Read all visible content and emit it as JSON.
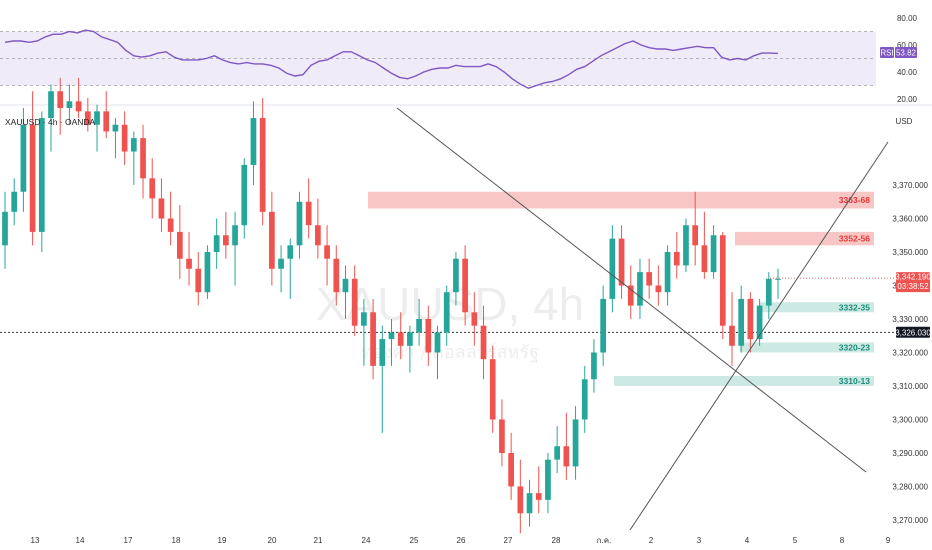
{
  "chart_data": [
    {
      "type": "line",
      "indicator": "RSI",
      "ylim": [
        20,
        80
      ],
      "y_ticks": [
        "80.00",
        "60.00",
        "40.00",
        "20.00"
      ],
      "band_upper": 70,
      "band_lower": 30,
      "midline": 50,
      "value_label": "53.82",
      "legend_label": "RSI",
      "values": [
        62,
        63,
        63,
        62,
        63,
        66,
        68,
        68,
        70,
        69,
        71,
        70,
        66,
        64,
        62,
        56,
        52,
        51,
        52,
        54,
        55,
        51,
        49,
        49,
        49,
        50,
        52,
        49,
        47,
        46,
        47,
        46,
        46,
        45,
        43,
        39,
        37,
        38,
        45,
        48,
        49,
        52,
        55,
        55,
        52,
        49,
        47,
        43,
        39,
        36,
        35,
        37,
        40,
        42,
        43,
        43,
        45,
        44,
        44,
        44,
        46,
        44,
        40,
        35,
        31,
        28,
        30,
        32,
        33,
        35,
        38,
        42,
        44,
        48,
        52,
        55,
        58,
        61,
        63,
        60,
        58,
        57,
        57,
        56,
        57,
        58,
        59,
        58,
        58,
        51,
        49,
        50,
        49,
        52,
        54,
        54,
        53.8
      ]
    },
    {
      "type": "candlestick",
      "symbol_label": "XAUUSD · 4h · OANDA",
      "currency_label": "USD",
      "watermark": "XAUUSD, 4h",
      "watermark_sub": "ทองคำ / ดอลลาร์สหรัฐ",
      "ylim": [
        3267,
        3393
      ],
      "y_ticks": [
        "3,370.000",
        "3,360.000",
        "3,350.000",
        "3,340.000",
        "3,330.000",
        "3,320.000",
        "3,310.000",
        "3,300.000",
        "3,290.000",
        "3,280.000",
        "3,270.000"
      ],
      "x_labels": [
        "13",
        "14",
        "17",
        "18",
        "19",
        "20",
        "21",
        "24",
        "25",
        "26",
        "27",
        "28",
        "ก.ค.",
        "2",
        "3",
        "4",
        "5",
        "8",
        "9"
      ],
      "current_price": "3,342.190",
      "countdown": "03:38:52",
      "horizontal_price": "3,326.030",
      "colors": {
        "up": "#26a69a",
        "down": "#ef5350",
        "resistance_zone": "#f7c6c5",
        "support_zone": "#cde9e3"
      },
      "zones": [
        {
          "label": "3363-68",
          "low": 3363,
          "high": 3368,
          "kind": "resistance"
        },
        {
          "label": "3352-56",
          "low": 3352,
          "high": 3356,
          "kind": "resistance"
        },
        {
          "label": "3332-35",
          "low": 3332,
          "high": 3335,
          "kind": "support"
        },
        {
          "label": "3320-23",
          "low": 3320,
          "high": 3323,
          "kind": "support"
        },
        {
          "label": "3310-13",
          "low": 3310,
          "high": 3313,
          "kind": "support"
        }
      ],
      "candles": [
        [
          3352,
          3368,
          3345,
          3362
        ],
        [
          3362,
          3372,
          3358,
          3368
        ],
        [
          3368,
          3393,
          3362,
          3388
        ],
        [
          3388,
          3398,
          3352,
          3356
        ],
        [
          3356,
          3392,
          3350,
          3390
        ],
        [
          3390,
          3400,
          3380,
          3398
        ],
        [
          3398,
          3402,
          3385,
          3393
        ],
        [
          3393,
          3400,
          3388,
          3395
        ],
        [
          3395,
          3402,
          3390,
          3392
        ],
        [
          3392,
          3396,
          3386,
          3388
        ],
        [
          3388,
          3394,
          3380,
          3392
        ],
        [
          3392,
          3398,
          3384,
          3386
        ],
        [
          3386,
          3390,
          3378,
          3388
        ],
        [
          3388,
          3392,
          3376,
          3380
        ],
        [
          3380,
          3386,
          3370,
          3384
        ],
        [
          3384,
          3388,
          3366,
          3372
        ],
        [
          3372,
          3378,
          3360,
          3366
        ],
        [
          3366,
          3372,
          3356,
          3360
        ],
        [
          3360,
          3368,
          3352,
          3356
        ],
        [
          3356,
          3364,
          3342,
          3348
        ],
        [
          3348,
          3356,
          3340,
          3345
        ],
        [
          3345,
          3350,
          3334,
          3338
        ],
        [
          3338,
          3352,
          3336,
          3350
        ],
        [
          3350,
          3360,
          3345,
          3355
        ],
        [
          3355,
          3362,
          3348,
          3352
        ],
        [
          3352,
          3362,
          3340,
          3358
        ],
        [
          3358,
          3378,
          3354,
          3376
        ],
        [
          3376,
          3395,
          3370,
          3390
        ],
        [
          3390,
          3396,
          3358,
          3362
        ],
        [
          3362,
          3368,
          3340,
          3345
        ],
        [
          3345,
          3352,
          3338,
          3348
        ],
        [
          3348,
          3354,
          3336,
          3352
        ],
        [
          3352,
          3368,
          3348,
          3365
        ],
        [
          3365,
          3372,
          3354,
          3358
        ],
        [
          3358,
          3366,
          3348,
          3352
        ],
        [
          3352,
          3358,
          3340,
          3348
        ],
        [
          3348,
          3352,
          3334,
          3338
        ],
        [
          3338,
          3346,
          3330,
          3342
        ],
        [
          3342,
          3346,
          3325,
          3328
        ],
        [
          3328,
          3336,
          3316,
          3332
        ],
        [
          3332,
          3336,
          3312,
          3316
        ],
        [
          3316,
          3328,
          3296,
          3324
        ],
        [
          3324,
          3330,
          3316,
          3326
        ],
        [
          3326,
          3332,
          3318,
          3322
        ],
        [
          3322,
          3328,
          3314,
          3326
        ],
        [
          3326,
          3336,
          3322,
          3330
        ],
        [
          3330,
          3334,
          3316,
          3320
        ],
        [
          3320,
          3328,
          3312,
          3326
        ],
        [
          3326,
          3340,
          3322,
          3338
        ],
        [
          3338,
          3350,
          3334,
          3348
        ],
        [
          3348,
          3352,
          3328,
          3332
        ],
        [
          3332,
          3338,
          3322,
          3328
        ],
        [
          3328,
          3334,
          3312,
          3318
        ],
        [
          3318,
          3322,
          3296,
          3300
        ],
        [
          3300,
          3306,
          3286,
          3290
        ],
        [
          3290,
          3296,
          3276,
          3280
        ],
        [
          3280,
          3288,
          3266,
          3272
        ],
        [
          3272,
          3282,
          3268,
          3278
        ],
        [
          3278,
          3286,
          3272,
          3276
        ],
        [
          3276,
          3290,
          3272,
          3288
        ],
        [
          3288,
          3298,
          3284,
          3292
        ],
        [
          3292,
          3302,
          3282,
          3286
        ],
        [
          3286,
          3304,
          3282,
          3300
        ],
        [
          3300,
          3316,
          3296,
          3312
        ],
        [
          3312,
          3324,
          3308,
          3320
        ],
        [
          3320,
          3340,
          3316,
          3336
        ],
        [
          3336,
          3358,
          3332,
          3354
        ],
        [
          3354,
          3358,
          3336,
          3340
        ],
        [
          3340,
          3346,
          3330,
          3334
        ],
        [
          3334,
          3348,
          3330,
          3344
        ],
        [
          3344,
          3348,
          3336,
          3340
        ],
        [
          3340,
          3346,
          3334,
          3338
        ],
        [
          3338,
          3352,
          3334,
          3350
        ],
        [
          3350,
          3356,
          3342,
          3346
        ],
        [
          3346,
          3360,
          3344,
          3358
        ],
        [
          3358,
          3368,
          3346,
          3352
        ],
        [
          3352,
          3362,
          3342,
          3344
        ],
        [
          3344,
          3358,
          3342,
          3355
        ],
        [
          3355,
          3356,
          3324,
          3328
        ],
        [
          3328,
          3338,
          3316,
          3322
        ],
        [
          3322,
          3340,
          3320,
          3336
        ],
        [
          3336,
          3338,
          3320,
          3324
        ],
        [
          3324,
          3336,
          3322,
          3334
        ],
        [
          3334,
          3344,
          3330,
          3342
        ],
        [
          3342,
          3345,
          3336,
          3342
        ]
      ]
    }
  ]
}
